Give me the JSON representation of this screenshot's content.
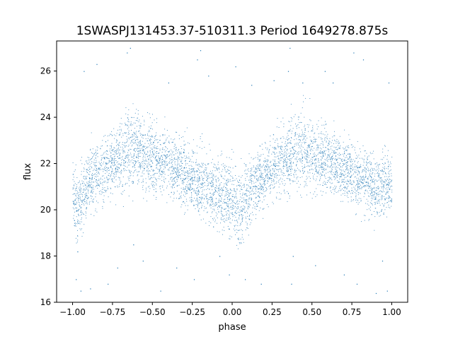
{
  "chart_data": {
    "type": "scatter",
    "title": "1SWASPJ131453.37-510311.3 Period 1649278.875s",
    "xlabel": "phase",
    "ylabel": "flux",
    "xlim": [
      -1.1,
      1.1
    ],
    "ylim": [
      16.0,
      27.3
    ],
    "xticks": [
      -1.0,
      -0.75,
      -0.5,
      -0.25,
      0.0,
      0.25,
      0.5,
      0.75,
      1.0
    ],
    "xtick_labels": [
      "−1.00",
      "−0.75",
      "−0.50",
      "−0.25",
      "0.00",
      "0.25",
      "0.50",
      "0.75",
      "1.00"
    ],
    "yticks": [
      16,
      18,
      20,
      22,
      24,
      26
    ],
    "ytick_labels": [
      "16",
      "18",
      "20",
      "22",
      "24",
      "26"
    ],
    "grid": false,
    "legend": "none",
    "marker_color": "#1f77b4",
    "series": [
      {
        "x": [
          -1.0,
          -0.97,
          -0.94,
          -0.9,
          -0.85,
          -0.8,
          -0.75,
          -0.7,
          -0.65,
          -0.6,
          -0.55,
          -0.5,
          -0.45,
          -0.4,
          -0.35,
          -0.3,
          -0.25,
          -0.2,
          -0.15,
          -0.1,
          -0.05,
          0.0,
          0.03,
          0.06,
          0.1,
          0.15,
          0.2,
          0.25,
          0.3,
          0.35,
          0.4,
          0.45,
          0.5,
          0.55,
          0.6,
          0.65,
          0.7,
          0.75,
          0.8,
          0.85,
          0.9,
          0.95,
          1.0
        ],
        "y": [
          21.0,
          20.0,
          20.5,
          21.3,
          21.5,
          21.8,
          22.0,
          22.2,
          22.5,
          22.6,
          22.4,
          22.3,
          22.1,
          22.0,
          21.8,
          21.6,
          21.4,
          21.2,
          21.0,
          20.8,
          20.6,
          20.5,
          20.0,
          20.2,
          20.8,
          21.2,
          21.5,
          21.8,
          22.1,
          22.3,
          22.5,
          22.6,
          22.4,
          22.3,
          22.1,
          22.0,
          21.8,
          21.6,
          21.4,
          21.2,
          21.0,
          21.1,
          21.0
        ],
        "spread": [
          0.8,
          1.0,
          1.0,
          0.9,
          0.9,
          0.9,
          0.9,
          1.0,
          1.1,
          1.1,
          1.0,
          1.0,
          0.9,
          0.9,
          0.9,
          0.9,
          0.9,
          1.0,
          1.0,
          1.0,
          1.0,
          1.0,
          1.2,
          1.1,
          1.0,
          0.9,
          0.9,
          0.9,
          1.0,
          1.0,
          1.1,
          1.1,
          1.0,
          1.0,
          0.9,
          0.9,
          0.9,
          0.9,
          1.0,
          1.0,
          1.0,
          1.0,
          0.8
        ]
      }
    ],
    "outliers": [
      [
        -0.98,
        17.0
      ],
      [
        -0.97,
        18.2
      ],
      [
        -0.95,
        16.5
      ],
      [
        -0.93,
        26.0
      ],
      [
        -0.89,
        16.6
      ],
      [
        -0.85,
        26.3
      ],
      [
        -0.78,
        16.8
      ],
      [
        -0.72,
        17.5
      ],
      [
        -0.66,
        26.8
      ],
      [
        -0.64,
        27.0
      ],
      [
        -0.62,
        18.5
      ],
      [
        -0.56,
        17.8
      ],
      [
        -0.45,
        16.5
      ],
      [
        -0.4,
        25.5
      ],
      [
        -0.35,
        17.5
      ],
      [
        -0.24,
        17.0
      ],
      [
        -0.22,
        26.5
      ],
      [
        -0.2,
        26.9
      ],
      [
        -0.15,
        25.8
      ],
      [
        -0.08,
        18.0
      ],
      [
        -0.02,
        17.2
      ],
      [
        0.02,
        26.2
      ],
      [
        0.08,
        17.0
      ],
      [
        0.12,
        25.4
      ],
      [
        0.18,
        16.8
      ],
      [
        0.26,
        25.6
      ],
      [
        0.35,
        26.0
      ],
      [
        0.36,
        27.0
      ],
      [
        0.37,
        16.8
      ],
      [
        0.38,
        18.0
      ],
      [
        0.44,
        25.5
      ],
      [
        0.52,
        17.6
      ],
      [
        0.58,
        26.0
      ],
      [
        0.63,
        25.5
      ],
      [
        0.7,
        17.2
      ],
      [
        0.76,
        26.8
      ],
      [
        0.78,
        16.8
      ],
      [
        0.82,
        26.5
      ],
      [
        0.9,
        16.4
      ],
      [
        0.94,
        17.8
      ],
      [
        0.97,
        16.5
      ],
      [
        0.98,
        25.5
      ]
    ]
  }
}
